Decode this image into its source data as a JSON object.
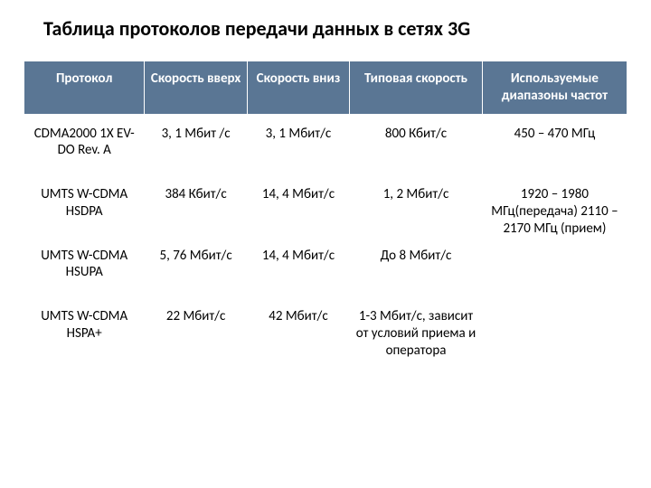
{
  "title": "Таблица протоколов передачи данных в сетях 3G",
  "table": {
    "headers": [
      "Протокол",
      "Скорость вверх",
      "Скорость вниз",
      "Типовая скорость",
      "Используемые диапазоны частот"
    ],
    "rows": [
      {
        "protocol": "CDMA2000 1X EV-DO Rev. A",
        "up": "3, 1 Мбит /с",
        "down": "3, 1 Мбит/с",
        "typical": "800 Кбит/с",
        "freq": "450 – 470 МГц",
        "freq_rowspan": 1
      },
      {
        "protocol": "UMTS W-CDMA HSDPA",
        "up": "384 Кбит/с",
        "down": "14, 4 Мбит/c",
        "typical": "1, 2 Мбит/c",
        "freq": "1920 – 1980 MГц(передача) 2110 – 2170 МГц (прием)",
        "freq_rowspan": 2
      },
      {
        "protocol": "UMTS W-CDMA HSUPA",
        "up": "5, 76 Мбит/c",
        "down": "14, 4 Мбит/c",
        "typical": "До 8 Мбит/c",
        "freq": null,
        "freq_rowspan": 0
      },
      {
        "protocol": "UMTS W-CDMA HSPA+",
        "up": "22 Мбит/c",
        "down": "42 Мбит/c",
        "typical": "1-3 Мбит/c, зависит от условий приема и оператора",
        "freq": "",
        "freq_rowspan": 1
      }
    ]
  },
  "style": {
    "header_bg": "#5a7694",
    "header_fg": "#ffffff",
    "body_bg": "#ffffff",
    "body_fg": "#000000"
  }
}
